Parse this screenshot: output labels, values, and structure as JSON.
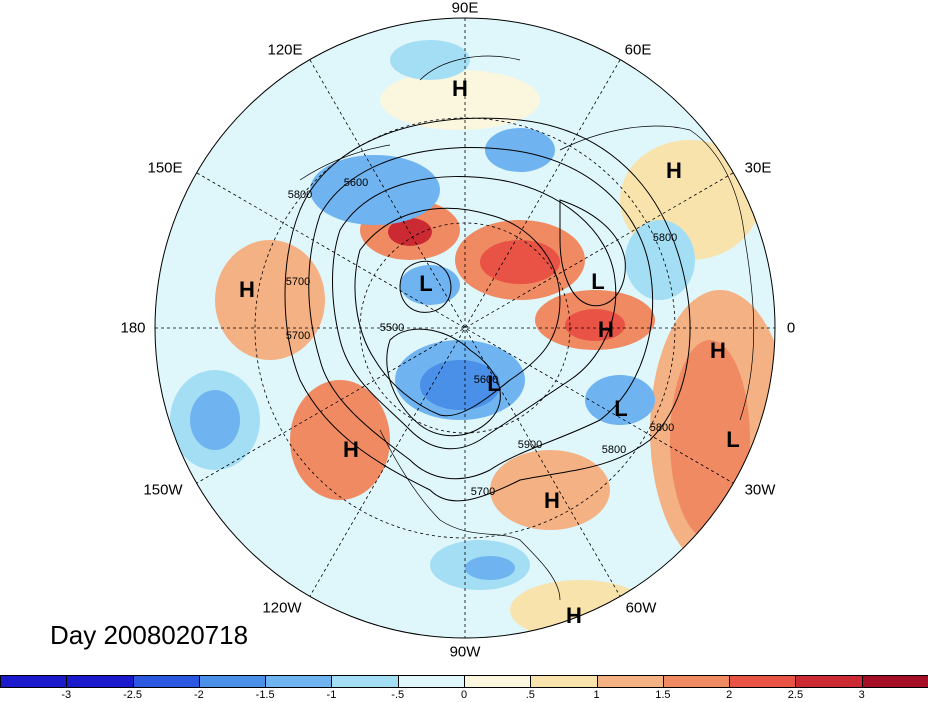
{
  "title": "Day 2008020718",
  "longitude_labels": [
    "90E",
    "60E",
    "30E",
    "0",
    "30W",
    "60W",
    "90W",
    "120W",
    "150W",
    "180",
    "150E",
    "120E"
  ],
  "contour_labels": [
    "5600",
    "5800",
    "5700",
    "5700",
    "5500",
    "5800",
    "5800",
    "5800",
    "5900",
    "5700",
    "5600"
  ],
  "pressure_centers": [
    "H",
    "H",
    "H",
    "H",
    "H",
    "H",
    "H",
    "H",
    "L",
    "L",
    "L",
    "L",
    "L"
  ],
  "colorbar": {
    "ticks": [
      "-3",
      "-2.5",
      "-2",
      "-1.5",
      "-1",
      "-.5",
      "0",
      ".5",
      "1",
      "1.5",
      "2",
      "2.5",
      "3"
    ],
    "colors": [
      "#1a1acc",
      "#2c57e0",
      "#4a8fe8",
      "#6fb3f0",
      "#a3def5",
      "#dff6fb",
      "#fbf7df",
      "#f8e3ad",
      "#f4b183",
      "#ef8a62",
      "#e85345",
      "#cc2a32",
      "#a50f26"
    ]
  },
  "colors": {
    "ocean_field": "#dff6fb",
    "land_lines": "#000000",
    "grid": "#000000"
  }
}
